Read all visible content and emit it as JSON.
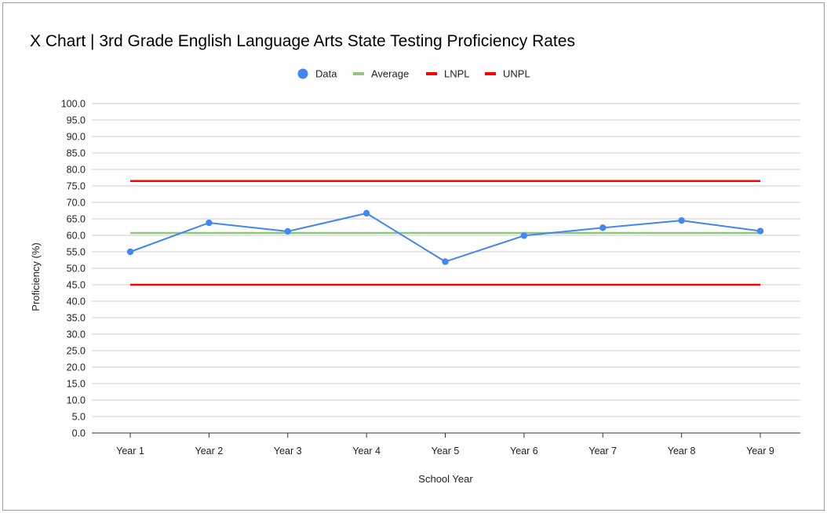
{
  "chart_data": {
    "type": "line",
    "title": "X Chart | 3rd Grade English Language Arts State Testing Proficiency Rates",
    "xlabel": "School Year",
    "ylabel": "Proficiency (%)",
    "categories": [
      "Year 1",
      "Year 2",
      "Year 3",
      "Year 4",
      "Year 5",
      "Year 6",
      "Year 7",
      "Year 8",
      "Year 9"
    ],
    "ylim": [
      0,
      100
    ],
    "ytick_step": 5,
    "ytick_labels": [
      "0.0",
      "5.0",
      "10.0",
      "15.0",
      "20.0",
      "25.0",
      "30.0",
      "35.0",
      "40.0",
      "45.0",
      "50.0",
      "55.0",
      "60.0",
      "65.0",
      "70.0",
      "75.0",
      "80.0",
      "85.0",
      "90.0",
      "95.0",
      "100.0"
    ],
    "grid": true,
    "legend_position": "top",
    "series": [
      {
        "name": "Data",
        "color": "#4285f4",
        "style": "line-markers",
        "values": [
          55.0,
          63.8,
          61.2,
          66.7,
          52.0,
          59.9,
          62.3,
          64.5,
          61.3
        ]
      },
      {
        "name": "Average",
        "color": "#93c47d",
        "style": "line",
        "values": [
          60.7,
          60.7,
          60.7,
          60.7,
          60.7,
          60.7,
          60.7,
          60.7,
          60.7
        ]
      },
      {
        "name": "LNPL",
        "color": "#ff0000",
        "style": "line",
        "values": [
          45.0,
          45.0,
          45.0,
          45.0,
          45.0,
          45.0,
          45.0,
          45.0,
          45.0
        ]
      },
      {
        "name": "UNPL",
        "color": "#ff0000",
        "style": "line",
        "values": [
          76.5,
          76.5,
          76.5,
          76.5,
          76.5,
          76.5,
          76.5,
          76.5,
          76.5
        ]
      }
    ]
  }
}
